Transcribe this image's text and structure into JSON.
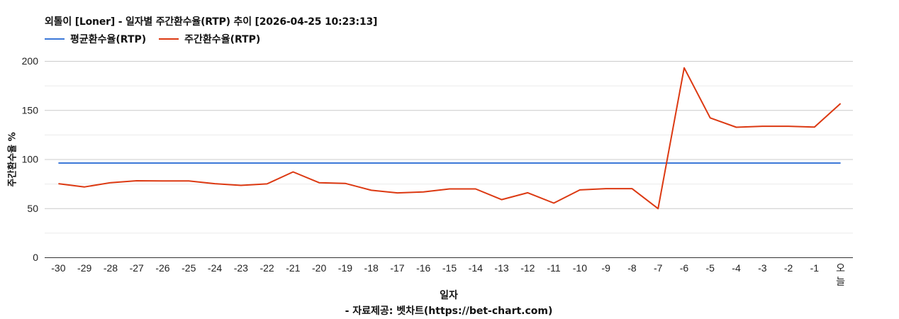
{
  "chart_data": {
    "type": "line",
    "title": "외톨이 [Loner] - 일자별 주간환수율(RTP) 추이 [2026-04-25 10:23:13]",
    "xlabel": "일자",
    "ylabel": "주간환수율 %",
    "source_note": "- 자료제공: 벳차트(https://bet-chart.com)",
    "ylim": [
      0,
      200
    ],
    "yticks": [
      0,
      50,
      100,
      150,
      200
    ],
    "minor_gridlines": [
      25,
      75,
      125,
      175
    ],
    "grid": true,
    "legend_position": "top-left",
    "categories": [
      "-30",
      "-29",
      "-28",
      "-27",
      "-26",
      "-25",
      "-24",
      "-23",
      "-22",
      "-21",
      "-20",
      "-19",
      "-18",
      "-17",
      "-16",
      "-15",
      "-14",
      "-13",
      "-12",
      "-11",
      "-10",
      "-9",
      "-8",
      "-7",
      "-6",
      "-5",
      "-4",
      "-3",
      "-2",
      "-1",
      "오늘"
    ],
    "series": [
      {
        "name": "평균환수율(RTP)",
        "color": "#3c78d8",
        "values": [
          96,
          96,
          96,
          96,
          96,
          96,
          96,
          96,
          96,
          96,
          96,
          96,
          96,
          96,
          96,
          96,
          96,
          96,
          96,
          96,
          96,
          96,
          96,
          96,
          96,
          96,
          96,
          96,
          96,
          96,
          96
        ]
      },
      {
        "name": "주간환수율(RTP)",
        "color": "#dc3912",
        "values": [
          75,
          71.7,
          76,
          78,
          77.8,
          77.8,
          75,
          73.3,
          74.8,
          87,
          76,
          75.3,
          68.3,
          65.6,
          66.6,
          69.7,
          69.7,
          58.8,
          65.8,
          55.2,
          68.7,
          70,
          70,
          49.6,
          193,
          142,
          132.5,
          133.5,
          133.5,
          132.6,
          156.7
        ]
      }
    ]
  },
  "header": {
    "title": "외톨이 [Loner] - 일자별 주간환수율(RTP) 추이 [2026-04-25 10:23:13]"
  },
  "legend": [
    {
      "label": "평균환수율(RTP)",
      "color": "#3c78d8"
    },
    {
      "label": "주간환수율(RTP)",
      "color": "#dc3912"
    }
  ],
  "axes": {
    "y_title": "주간환수율 %",
    "x_title": "일자"
  },
  "footer": {
    "source": "- 자료제공: 벳차트(https://bet-chart.com)"
  }
}
